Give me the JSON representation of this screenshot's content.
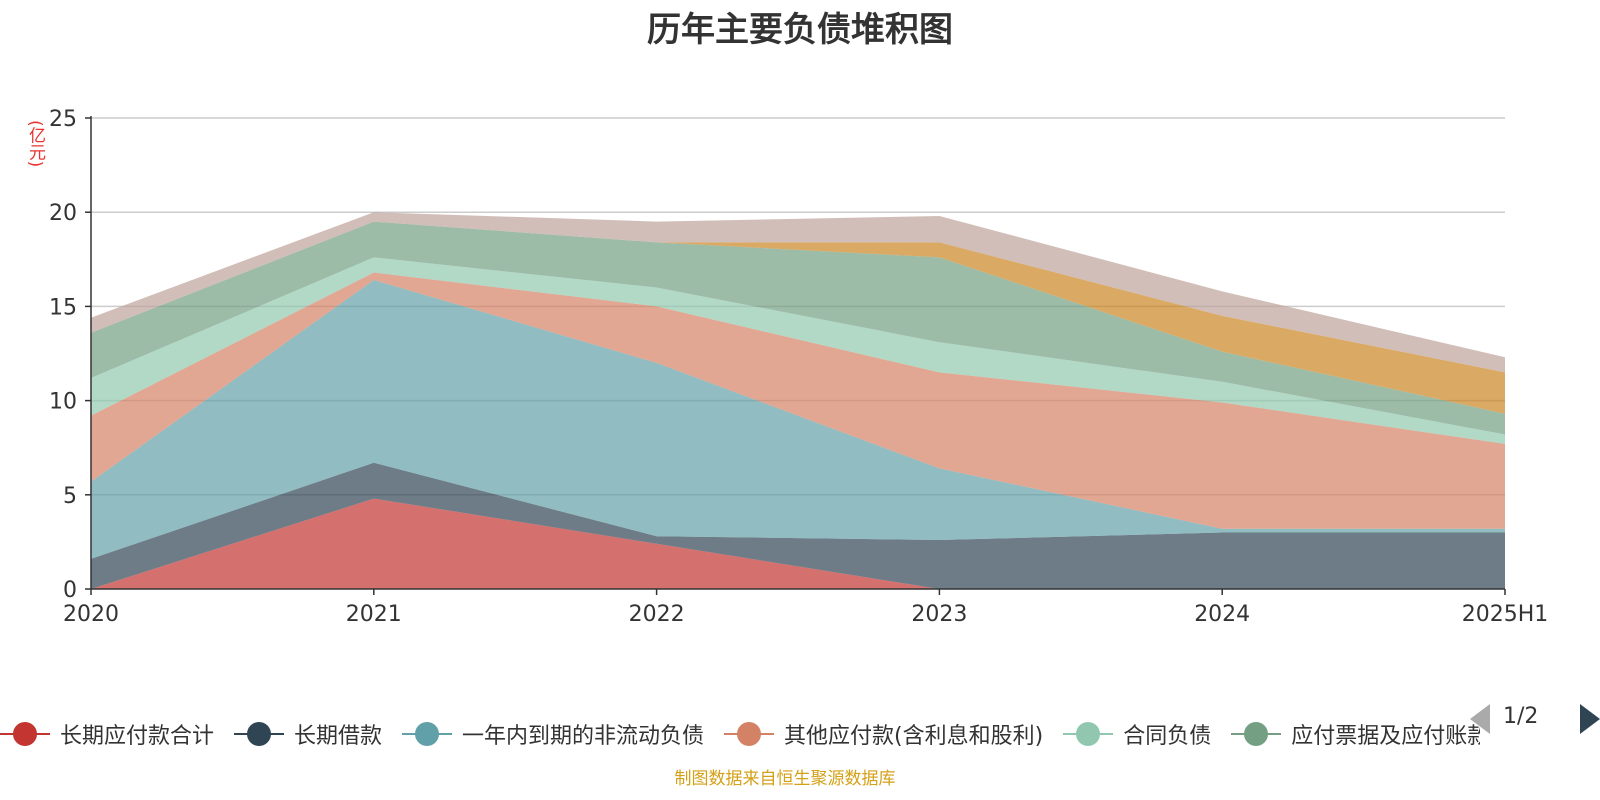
{
  "chart_data": {
    "type": "area",
    "stacked": true,
    "title": "历年主要负债堆积图",
    "unit_label": "(亿元)",
    "source_note": "制图数据来自恒生聚源数据库",
    "categories": [
      "2020",
      "2021",
      "2022",
      "2023",
      "2024",
      "2025H1"
    ],
    "ylim": [
      0,
      25
    ],
    "yticks": [
      0,
      5,
      10,
      15,
      20,
      25
    ],
    "grid": true,
    "legend_position": "bottom",
    "legend_page": "1/2",
    "series": [
      {
        "name": "长期应付款合计",
        "color": "#c23531",
        "values": [
          0,
          4.8,
          2.4,
          0,
          0,
          0
        ]
      },
      {
        "name": "长期借款",
        "color": "#2f4554",
        "values": [
          1.6,
          1.9,
          0.4,
          2.6,
          3.0,
          3.0
        ]
      },
      {
        "name": "一年内到期的非流动负债",
        "color": "#61a0a8",
        "values": [
          4.1,
          9.7,
          9.2,
          3.8,
          0.2,
          0.2
        ]
      },
      {
        "name": "其他应付款(含利息和股利)",
        "color": "#d48265",
        "values": [
          3.5,
          0.4,
          3.0,
          5.1,
          6.7,
          4.5
        ]
      },
      {
        "name": "合同负债",
        "color": "#91c7ae",
        "values": [
          2.0,
          0.8,
          1.0,
          1.6,
          1.1,
          0.5
        ]
      },
      {
        "name": "应付票据及应付账款",
        "color": "#749f83",
        "values": [
          2.4,
          1.9,
          2.4,
          4.5,
          1.6,
          1.1
        ]
      },
      {
        "name": "",
        "color": "#ca8622",
        "values": [
          0,
          0,
          0,
          0.8,
          1.9,
          2.2
        ]
      },
      {
        "name": "",
        "color": "#bda29a",
        "values": [
          0.8,
          0.5,
          1.1,
          1.4,
          1.3,
          0.8
        ]
      }
    ]
  },
  "legend_visible": [
    "长期应付款合计",
    "长期借款",
    "一年内到期的非流动负债",
    "其他应付款(含利息和股利)",
    "合同负债",
    "应付票据及应付账款"
  ]
}
